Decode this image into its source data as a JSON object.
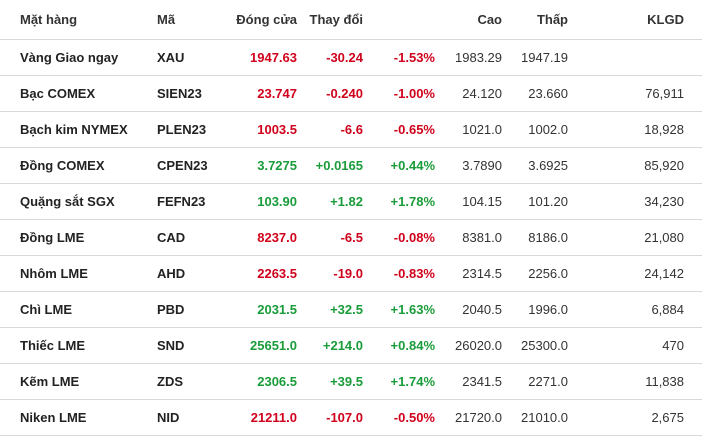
{
  "colors": {
    "down": "#d0021b",
    "up": "#1a9c3a"
  },
  "headers": {
    "name": "Mặt hàng",
    "code": "Mã",
    "close": "Đóng cửa",
    "change": "Thay đổi",
    "high": "Cao",
    "low": "Thấp",
    "volume": "KLGD"
  },
  "rows": [
    {
      "name": "Vàng Giao ngay",
      "code": "XAU",
      "close": "1947.63",
      "change": "-30.24",
      "pct": "-1.53%",
      "high": "1983.29",
      "low": "1947.19",
      "volume": "",
      "dir": "down"
    },
    {
      "name": "Bạc COMEX",
      "code": "SIEN23",
      "close": "23.747",
      "change": "-0.240",
      "pct": "-1.00%",
      "high": "24.120",
      "low": "23.660",
      "volume": "76,911",
      "dir": "down"
    },
    {
      "name": "Bạch kim NYMEX",
      "code": "PLEN23",
      "close": "1003.5",
      "change": "-6.6",
      "pct": "-0.65%",
      "high": "1021.0",
      "low": "1002.0",
      "volume": "18,928",
      "dir": "down"
    },
    {
      "name": "Đồng COMEX",
      "code": "CPEN23",
      "close": "3.7275",
      "change": "+0.0165",
      "pct": "+0.44%",
      "high": "3.7890",
      "low": "3.6925",
      "volume": "85,920",
      "dir": "up"
    },
    {
      "name": "Quặng sắt SGX",
      "code": "FEFN23",
      "close": "103.90",
      "change": "+1.82",
      "pct": "+1.78%",
      "high": "104.15",
      "low": "101.20",
      "volume": "34,230",
      "dir": "up"
    },
    {
      "name": "Đồng LME",
      "code": "CAD",
      "close": "8237.0",
      "change": "-6.5",
      "pct": "-0.08%",
      "high": "8381.0",
      "low": "8186.0",
      "volume": "21,080",
      "dir": "down"
    },
    {
      "name": "Nhôm LME",
      "code": "AHD",
      "close": "2263.5",
      "change": "-19.0",
      "pct": "-0.83%",
      "high": "2314.5",
      "low": "2256.0",
      "volume": "24,142",
      "dir": "down"
    },
    {
      "name": "Chì LME",
      "code": "PBD",
      "close": "2031.5",
      "change": "+32.5",
      "pct": "+1.63%",
      "high": "2040.5",
      "low": "1996.0",
      "volume": "6,884",
      "dir": "up"
    },
    {
      "name": "Thiếc LME",
      "code": "SND",
      "close": "25651.0",
      "change": "+214.0",
      "pct": "+0.84%",
      "high": "26020.0",
      "low": "25300.0",
      "volume": "470",
      "dir": "up"
    },
    {
      "name": "Kẽm LME",
      "code": "ZDS",
      "close": "2306.5",
      "change": "+39.5",
      "pct": "+1.74%",
      "high": "2341.5",
      "low": "2271.0",
      "volume": "11,838",
      "dir": "up"
    },
    {
      "name": "Niken LME",
      "code": "NID",
      "close": "21211.0",
      "change": "-107.0",
      "pct": "-0.50%",
      "high": "21720.0",
      "low": "21010.0",
      "volume": "2,675",
      "dir": "down"
    }
  ]
}
